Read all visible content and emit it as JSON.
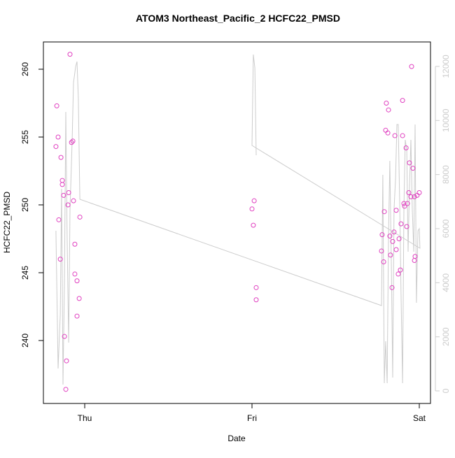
{
  "chart_data": {
    "type": "scatter",
    "title": "ATOM3 Northeast_Pacific_2 HCFC22_PMSD",
    "x_label": "Date",
    "y_label": "HCFC22_PMSD",
    "xlim": [
      -0.247,
      2.067
    ],
    "xticks": [
      {
        "value": 0,
        "label": "Thu"
      },
      {
        "value": 1,
        "label": "Fri"
      },
      {
        "value": 2,
        "label": "Sat"
      }
    ],
    "ylim": [
      235.36,
      262.01
    ],
    "yticks": [
      240,
      245,
      250,
      255,
      260
    ],
    "y2lim": [
      -465,
      12904
    ],
    "y2ticks": [
      0,
      2000,
      4000,
      6000,
      8000,
      10000,
      12000
    ],
    "series": [
      {
        "color": "#cccccc",
        "axis": "y2",
        "x": [
          -0.172,
          -0.159,
          -0.146,
          -0.138,
          -0.13,
          -0.121,
          -0.113,
          -0.105,
          -0.096,
          -0.088,
          -0.075,
          -0.067,
          -0.054,
          -0.046,
          -0.038,
          -0.029,
          1.774,
          1.782,
          1.791,
          1.799,
          1.808,
          1.816,
          1.824,
          1.833,
          1.841,
          1.849,
          1.858,
          1.866,
          1.874,
          1.883,
          1.891,
          1.9,
          1.908,
          1.916,
          1.925,
          1.933,
          1.941,
          1.95,
          1.958,
          1.967,
          1.975,
          1.983,
          1.992,
          2.0,
          2.004,
          1.0,
          1.008,
          1.017,
          1.025
        ],
        "values": [
          5922,
          828,
          2819,
          7474,
          233,
          4112,
          10318,
          5663,
          1784,
          6698,
          9284,
          11404,
          11999,
          12180,
          10835,
          7086,
          3155,
          7991,
          284,
          1836,
          284,
          5663,
          8508,
          4629,
          491,
          6698,
          7861,
          9853,
          9853,
          6956,
          3595,
          284,
          6698,
          9284,
          8896,
          5146,
          7474,
          9284,
          6698,
          5146,
          9853,
          3258,
          5922,
          5999,
          5275,
          9077,
          12439,
          11947,
          8715
        ]
      },
      {
        "color": "#e040c0",
        "x": [
          -0.172,
          -0.167,
          -0.159,
          -0.155,
          -0.146,
          -0.142,
          -0.134,
          -0.134,
          -0.126,
          -0.121,
          -0.113,
          -0.109,
          -0.1,
          -0.096,
          -0.088,
          -0.079,
          -0.071,
          -0.067,
          -0.059,
          -0.059,
          -0.046,
          -0.046,
          -0.033,
          -0.029,
          1.0,
          1.013,
          1.008,
          1.025,
          1.025,
          1.774,
          1.778,
          1.787,
          1.791,
          1.799,
          1.803,
          1.812,
          1.816,
          1.824,
          1.828,
          1.837,
          1.841,
          1.849,
          1.854,
          1.862,
          1.862,
          1.874,
          1.879,
          1.887,
          1.891,
          1.9,
          1.9,
          1.908,
          1.912,
          1.921,
          1.925,
          1.929,
          1.937,
          1.941,
          1.95,
          1.954,
          1.962,
          1.971,
          1.971,
          1.975,
          1.987,
          2.0
        ],
        "values": [
          254.3,
          257.3,
          255.0,
          248.9,
          246.0,
          253.5,
          251.8,
          251.5,
          250.7,
          240.3,
          236.4,
          238.5,
          250.0,
          250.9,
          261.1,
          254.6,
          254.7,
          250.3,
          247.1,
          244.9,
          244.4,
          241.8,
          243.1,
          249.1,
          249.7,
          250.3,
          248.5,
          243.9,
          243.0,
          246.6,
          247.8,
          245.8,
          249.5,
          255.5,
          257.5,
          255.3,
          257.0,
          247.7,
          246.3,
          243.9,
          247.3,
          248.0,
          255.1,
          246.7,
          249.6,
          244.9,
          247.5,
          245.2,
          248.6,
          257.7,
          255.1,
          250.1,
          249.9,
          254.2,
          248.4,
          250.1,
          250.9,
          253.1,
          250.6,
          260.2,
          252.7,
          250.6,
          245.9,
          246.2,
          250.7,
          250.9
        ]
      }
    ]
  }
}
